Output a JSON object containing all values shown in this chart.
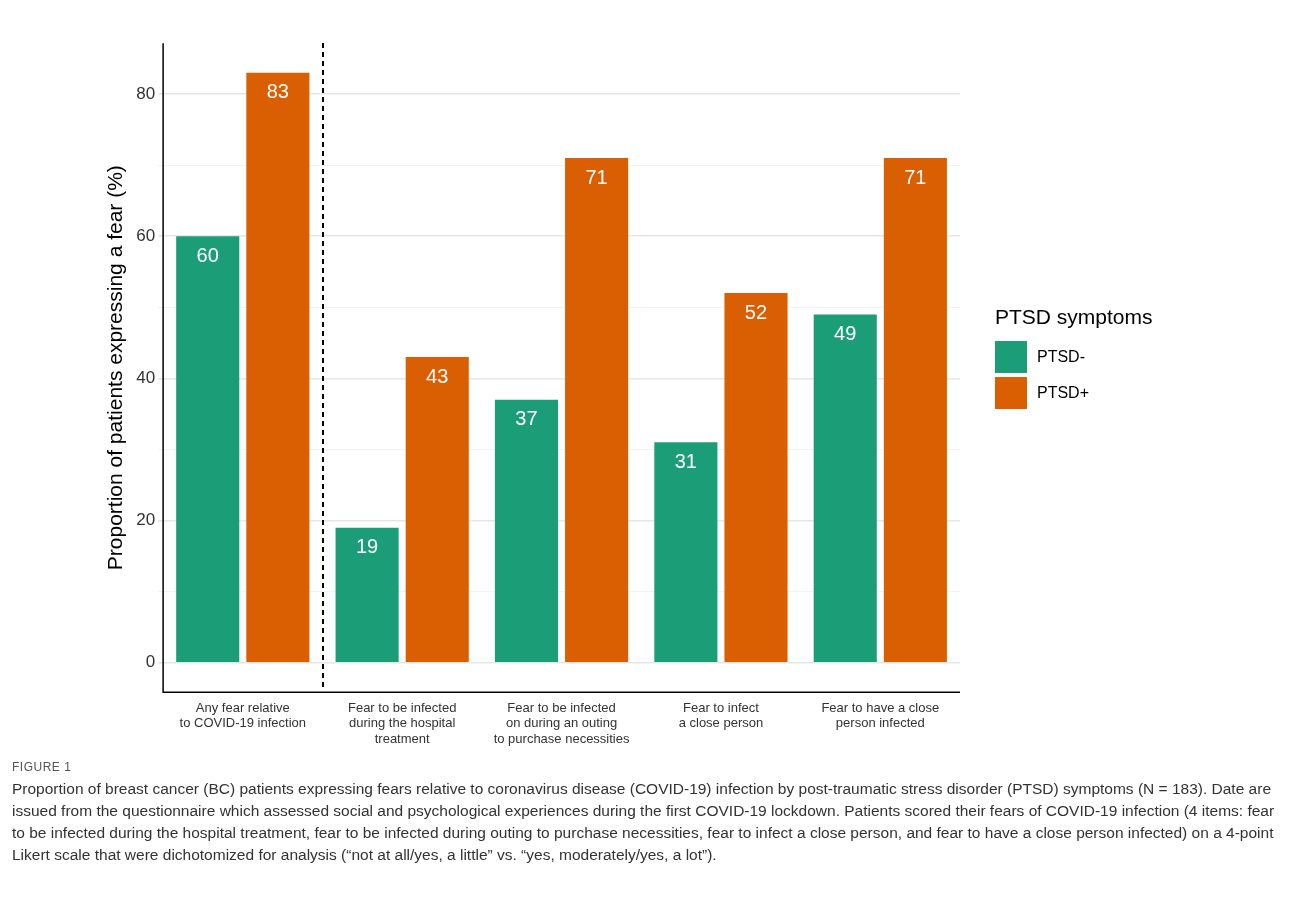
{
  "chart_data": {
    "type": "bar",
    "ylabel": "Proportion of patients expressing a fear (%)",
    "legend_title": "PTSD symptoms",
    "categories": [
      "Any fear relative\nto COVID-19 infection",
      "Fear to be infected\nduring the hospital\ntreatment",
      "Fear to be infected\non during an outing\nto purchase necessities",
      "Fear to infect\na close person",
      "Fear to have a close\nperson infected"
    ],
    "series": [
      {
        "name": "PTSD-",
        "color": "#1b9e77",
        "values": [
          60,
          19,
          37,
          31,
          49
        ]
      },
      {
        "name": "PTSD+",
        "color": "#d95f02",
        "values": [
          83,
          43,
          71,
          52,
          71
        ]
      }
    ],
    "ylim": [
      -4.15,
      87.15
    ],
    "yticks": [
      0,
      {
        "value": 10,
        "label": null
      },
      20,
      {
        "value": 30,
        "label": null
      },
      40,
      {
        "value": 50,
        "label": null
      },
      60,
      {
        "value": 70,
        "label": null
      },
      80
    ],
    "grid": "y",
    "legend": "right",
    "data_labels": true,
    "annotations": [
      "FIGURE 1",
      "Proportion of breast cancer (BC) patients expressing fears relative to coronavirus disease (COVID-19) infection by post-traumatic stress disorder (PTSD) symptoms (N = 183). Date are issued from the questionnaire which assessed social and psychological experiences during the first COVID-19 lockdown. Patients scored their fears of COVID-19 infection (4 items: fear to be infected during the hospital treatment, fear to be infected during outing to purchase necessities, fear to infect a close person, and fear to have a close person infected) on a 4-point Likert scale that were dichotomized for analysis (“not at all/yes, a little” vs. “yes, moderately/yes, a lot”)."
    ]
  }
}
